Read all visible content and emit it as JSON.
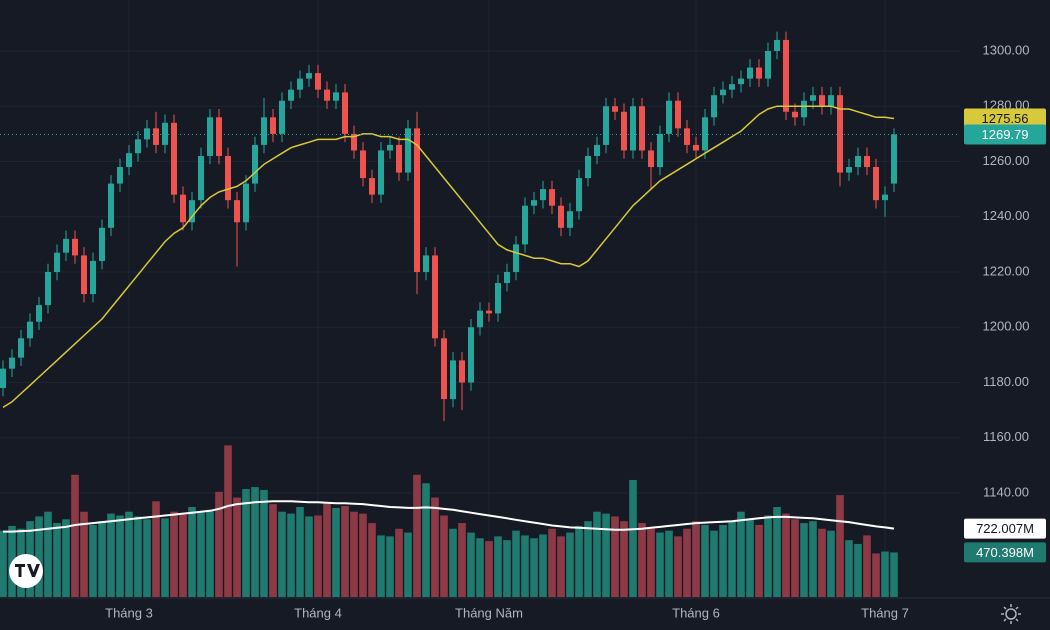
{
  "chart_data": {
    "type": "candlestick",
    "categories": [
      null,
      null,
      null,
      null,
      null,
      null,
      null,
      null,
      null,
      null,
      null,
      null,
      null,
      null,
      "Tháng 3",
      null,
      null,
      null,
      null,
      null,
      null,
      null,
      null,
      null,
      null,
      null,
      null,
      null,
      null,
      null,
      null,
      null,
      null,
      null,
      null,
      "Tháng 4",
      null,
      null,
      null,
      null,
      null,
      null,
      null,
      null,
      null,
      null,
      null,
      null,
      null,
      null,
      null,
      null,
      null,
      null,
      "Tháng Năm",
      null,
      null,
      null,
      null,
      null,
      null,
      null,
      null,
      null,
      null,
      null,
      null,
      null,
      null,
      null,
      null,
      null,
      null,
      null,
      null,
      null,
      null,
      "Tháng 6",
      null,
      null,
      null,
      null,
      null,
      null,
      null,
      null,
      null,
      null,
      null,
      null,
      null,
      null,
      null,
      null,
      null,
      null,
      null,
      null,
      "Tháng 7",
      null
    ],
    "open": [
      1178,
      1185,
      1189,
      1196,
      1202,
      1208,
      1220,
      1227,
      1232,
      1226,
      1212,
      1224,
      1236,
      1252,
      1258,
      1263,
      1268,
      1272,
      1266,
      1274,
      1248,
      1238,
      1246,
      1262,
      1276,
      1262,
      1246,
      1238,
      1252,
      1266,
      1276,
      1270,
      1282,
      1286,
      1290,
      1292,
      1286,
      1282,
      1285,
      1270,
      1264,
      1254,
      1248,
      1264,
      1266,
      1256,
      1272,
      1220,
      1226,
      1196,
      1174,
      1188,
      1180,
      1200,
      1206,
      1205,
      1216,
      1220,
      1230,
      1244,
      1246,
      1250,
      1244,
      1236,
      1242,
      1254,
      1262,
      1266,
      1280,
      1278,
      1264,
      1280,
      1264,
      1258,
      1270,
      1282,
      1272,
      1266,
      1264,
      1276,
      1284,
      1286,
      1288,
      1290,
      1294,
      1290,
      1300,
      1304,
      1278,
      1276,
      1282,
      1284,
      1280,
      1284,
      1256,
      1258,
      1262,
      1258,
      1246,
      1252
    ],
    "high": [
      1188,
      1192,
      1199,
      1205,
      1211,
      1223,
      1230,
      1235,
      1235,
      1229,
      1227,
      1239,
      1255,
      1261,
      1266,
      1271,
      1275,
      1278,
      1277,
      1277,
      1251,
      1249,
      1265,
      1279,
      1279,
      1265,
      1249,
      1255,
      1269,
      1283,
      1279,
      1285,
      1289,
      1293,
      1295,
      1295,
      1289,
      1288,
      1288,
      1273,
      1267,
      1257,
      1267,
      1269,
      1269,
      1275,
      1278,
      1229,
      1229,
      1199,
      1191,
      1191,
      1203,
      1209,
      1209,
      1219,
      1223,
      1233,
      1247,
      1249,
      1253,
      1253,
      1247,
      1245,
      1257,
      1265,
      1269,
      1283,
      1283,
      1281,
      1283,
      1283,
      1267,
      1273,
      1285,
      1285,
      1275,
      1269,
      1279,
      1287,
      1289,
      1291,
      1293,
      1297,
      1297,
      1303,
      1307,
      1307,
      1281,
      1285,
      1287,
      1287,
      1287,
      1287,
      1261,
      1265,
      1265,
      1261,
      1251,
      1272
    ],
    "low": [
      1175,
      1182,
      1186,
      1193,
      1199,
      1205,
      1217,
      1224,
      1223,
      1209,
      1209,
      1221,
      1233,
      1249,
      1255,
      1260,
      1265,
      1263,
      1263,
      1245,
      1235,
      1235,
      1243,
      1259,
      1259,
      1243,
      1222,
      1235,
      1249,
      1263,
      1267,
      1267,
      1279,
      1283,
      1287,
      1283,
      1279,
      1279,
      1267,
      1261,
      1251,
      1245,
      1245,
      1261,
      1253,
      1253,
      1212,
      1217,
      1193,
      1166,
      1171,
      1170,
      1177,
      1197,
      1202,
      1202,
      1213,
      1217,
      1227,
      1241,
      1243,
      1241,
      1233,
      1233,
      1239,
      1251,
      1259,
      1263,
      1275,
      1261,
      1261,
      1261,
      1250,
      1255,
      1267,
      1269,
      1263,
      1261,
      1261,
      1273,
      1281,
      1283,
      1285,
      1287,
      1287,
      1287,
      1297,
      1275,
      1273,
      1273,
      1279,
      1277,
      1277,
      1251,
      1253,
      1255,
      1255,
      1243,
      1240,
      1249
    ],
    "close": [
      1185,
      1189,
      1196,
      1202,
      1208,
      1220,
      1227,
      1232,
      1226,
      1212,
      1224,
      1236,
      1252,
      1258,
      1263,
      1268,
      1272,
      1266,
      1274,
      1248,
      1238,
      1246,
      1262,
      1276,
      1262,
      1246,
      1238,
      1252,
      1266,
      1276,
      1270,
      1282,
      1286,
      1290,
      1292,
      1286,
      1282,
      1285,
      1270,
      1264,
      1254,
      1248,
      1264,
      1266,
      1256,
      1272,
      1220,
      1226,
      1196,
      1174,
      1188,
      1180,
      1200,
      1206,
      1205,
      1216,
      1220,
      1230,
      1244,
      1246,
      1250,
      1244,
      1236,
      1242,
      1254,
      1262,
      1266,
      1280,
      1278,
      1264,
      1280,
      1264,
      1258,
      1270,
      1282,
      1272,
      1266,
      1264,
      1276,
      1284,
      1286,
      1288,
      1290,
      1294,
      1290,
      1300,
      1304,
      1278,
      1276,
      1282,
      1284,
      1280,
      1284,
      1256,
      1258,
      1262,
      1258,
      1246,
      1248,
      1269.79
    ],
    "up_color": "#26a69a",
    "down_color": "#ef5350",
    "ylim": [
      1102.35,
      1318.46
    ],
    "yticks": [
      {
        "value": 1140,
        "label": "1140.00"
      },
      {
        "value": 1160,
        "label": "1160.00"
      },
      {
        "value": 1180,
        "label": "1180.00"
      },
      {
        "value": 1200,
        "label": "1200.00"
      },
      {
        "value": 1220,
        "label": "1220.00"
      },
      {
        "value": 1240,
        "label": "1240.00"
      },
      {
        "value": 1260,
        "label": "1260.00"
      },
      {
        "value": 1280,
        "label": "1280.00"
      },
      {
        "value": 1300,
        "label": "1300.00"
      }
    ],
    "grid": true,
    "ma": {
      "color": "#d8c93a",
      "values": [
        1171,
        1173,
        1176,
        1179,
        1182,
        1185,
        1188,
        1191,
        1194,
        1197,
        1200,
        1203,
        1207,
        1211,
        1215,
        1219,
        1223,
        1227,
        1231,
        1234,
        1236,
        1240,
        1244,
        1247,
        1249,
        1250,
        1251,
        1253,
        1256,
        1259,
        1261,
        1263,
        1265,
        1266,
        1267,
        1268,
        1268,
        1268,
        1269,
        1269,
        1270,
        1270,
        1269,
        1269,
        1268,
        1268,
        1266,
        1262,
        1258,
        1254,
        1250,
        1246,
        1242,
        1238,
        1234,
        1230,
        1228,
        1227,
        1226,
        1225,
        1225,
        1224,
        1223,
        1223,
        1222,
        1224,
        1228,
        1232,
        1236,
        1240,
        1244,
        1247,
        1250,
        1253,
        1255,
        1257,
        1259,
        1261,
        1263,
        1265,
        1267,
        1269,
        1271,
        1274,
        1277,
        1279,
        1280,
        1280,
        1280,
        1280,
        1280,
        1280,
        1280,
        1279,
        1279,
        1278,
        1277,
        1276,
        1276,
        1275.56
      ]
    },
    "volume": {
      "up_color": "#1f7a70",
      "down_color": "#8e3a46",
      "values": [
        700,
        750,
        720,
        800,
        850,
        900,
        780,
        820,
        1290,
        900,
        760,
        800,
        880,
        860,
        900,
        850,
        820,
        1010,
        830,
        900,
        870,
        950,
        890,
        920,
        1110,
        1600,
        1050,
        1140,
        1160,
        1130,
        980,
        900,
        880,
        950,
        850,
        860,
        1000,
        940,
        960,
        900,
        880,
        780,
        650,
        640,
        720,
        680,
        1290,
        1200,
        1050,
        860,
        720,
        780,
        680,
        620,
        590,
        640,
        600,
        700,
        650,
        620,
        660,
        720,
        640,
        680,
        750,
        800,
        900,
        880,
        850,
        800,
        1235,
        780,
        720,
        680,
        700,
        640,
        720,
        800,
        760,
        700,
        760,
        800,
        900,
        820,
        760,
        860,
        950,
        880,
        820,
        780,
        800,
        720,
        700,
        1075,
        600,
        560,
        650,
        460,
        480,
        470.398
      ],
      "last_label": "470.398M"
    },
    "volume_ma": {
      "color": "#ffffff",
      "values": [
        690,
        690,
        695,
        700,
        710,
        720,
        730,
        740,
        760,
        770,
        780,
        790,
        800,
        810,
        820,
        830,
        840,
        850,
        860,
        870,
        880,
        890,
        900,
        910,
        930,
        960,
        980,
        990,
        1000,
        1005,
        1010,
        1010,
        1010,
        1005,
        1000,
        1000,
        995,
        990,
        990,
        985,
        980,
        970,
        960,
        950,
        945,
        940,
        940,
        945,
        940,
        930,
        920,
        905,
        890,
        875,
        860,
        845,
        830,
        815,
        800,
        785,
        770,
        755,
        745,
        735,
        730,
        725,
        720,
        715,
        710,
        710,
        715,
        720,
        730,
        740,
        750,
        760,
        770,
        780,
        785,
        790,
        795,
        800,
        810,
        820,
        830,
        840,
        845,
        845,
        840,
        835,
        830,
        820,
        810,
        800,
        790,
        775,
        760,
        745,
        735,
        722.007
      ],
      "last_label": "722.007M"
    },
    "y2lim": [
      0,
      6300
    ]
  }
}
